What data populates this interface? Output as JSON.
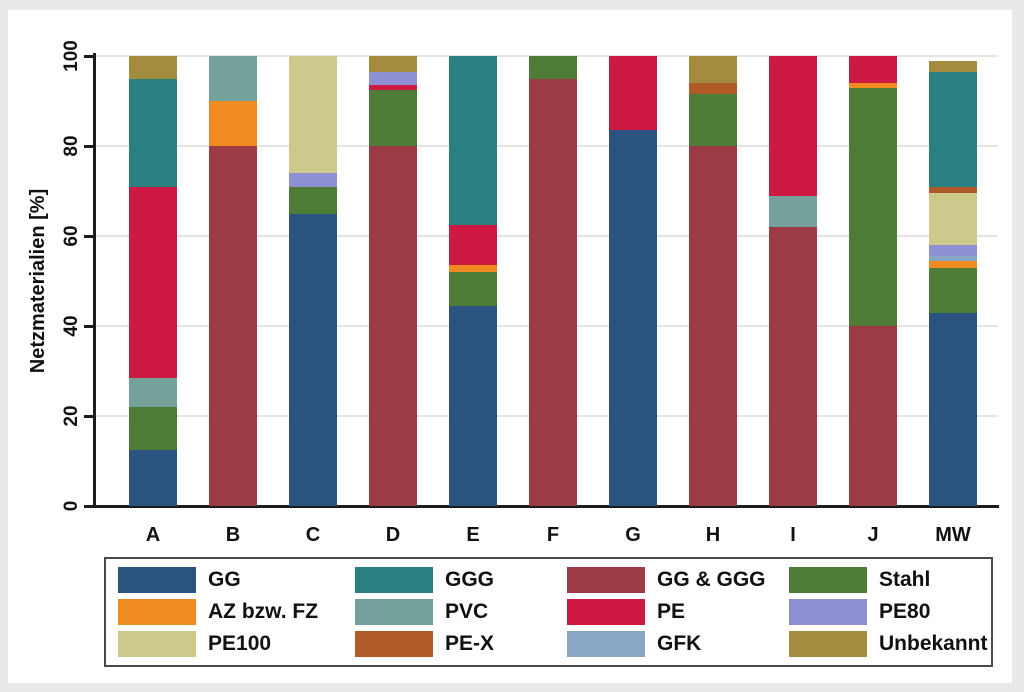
{
  "page": {
    "background": "#e9e9e9",
    "figure_background": "#ffffff",
    "axis_color": "#1c1c1c",
    "gridline_color": "#e4e4e4"
  },
  "chart_data": {
    "type": "bar",
    "stacked": true,
    "orientation": "vertical",
    "title": "",
    "xlabel": "",
    "ylabel": "Netzmaterialien [%]",
    "ylim": [
      0,
      100
    ],
    "yticks": [
      0,
      20,
      40,
      60,
      80,
      100
    ],
    "grid": "horizontal",
    "legend_position": "bottom",
    "categories": [
      "A",
      "B",
      "C",
      "D",
      "E",
      "F",
      "G",
      "H",
      "I",
      "J",
      "MW"
    ],
    "series": [
      {
        "name": "GG",
        "color": "#2B5380",
        "values": [
          12.5,
          0,
          65,
          0,
          44.5,
          0,
          83.5,
          0,
          0,
          0,
          43
        ]
      },
      {
        "name": "GG & GGG",
        "color": "#9C3A46",
        "values": [
          0,
          80,
          0,
          80,
          0,
          95,
          0,
          80,
          62,
          40,
          0
        ]
      },
      {
        "name": "Stahl",
        "color": "#4E7B36",
        "values": [
          9.5,
          0,
          6,
          12.5,
          7.5,
          5,
          0,
          11.5,
          0,
          53,
          10
        ]
      },
      {
        "name": "AZ bzw. FZ",
        "color": "#F08B22",
        "values": [
          0,
          10,
          0,
          0,
          1.5,
          0,
          0,
          0,
          0,
          1,
          1.5
        ]
      },
      {
        "name": "PVC",
        "color": "#74A19B",
        "values": [
          6.5,
          10,
          0,
          0,
          0,
          0,
          0,
          0,
          7,
          0,
          0
        ]
      },
      {
        "name": "PE",
        "color": "#CE1A43",
        "values": [
          42.5,
          0,
          0,
          1,
          9,
          0,
          16.5,
          0,
          31,
          6,
          0
        ]
      },
      {
        "name": "GFK",
        "color": "#89A7C4",
        "values": [
          0,
          0,
          0,
          0,
          0,
          0,
          0,
          0,
          0,
          0,
          1
        ]
      },
      {
        "name": "PE80",
        "color": "#8F8FD3",
        "values": [
          0,
          0,
          3,
          3,
          0,
          0,
          0,
          0,
          0,
          0,
          2.5
        ]
      },
      {
        "name": "PE100",
        "color": "#CCC98B",
        "values": [
          0,
          0,
          26,
          0,
          0,
          0,
          0,
          0,
          0,
          0,
          11.5
        ]
      },
      {
        "name": "PE-X",
        "color": "#B05A28",
        "values": [
          0,
          0,
          0,
          0,
          0,
          0,
          0,
          2.5,
          0,
          0,
          1.5
        ]
      },
      {
        "name": "GGG",
        "color": "#2A8080",
        "values": [
          24,
          0,
          0,
          0,
          37.5,
          0,
          0,
          0,
          0,
          0,
          25.5
        ]
      },
      {
        "name": "Unbekannt",
        "color": "#A38B3F",
        "values": [
          5,
          0,
          0,
          3.5,
          0,
          0,
          0,
          6,
          0,
          0,
          2.5
        ]
      }
    ],
    "legend": [
      "GG",
      "GGG",
      "GG & GGG",
      "Stahl",
      "AZ bzw. FZ",
      "PVC",
      "PE",
      "PE80",
      "PE100",
      "PE-X",
      "GFK",
      "Unbekannt"
    ]
  }
}
